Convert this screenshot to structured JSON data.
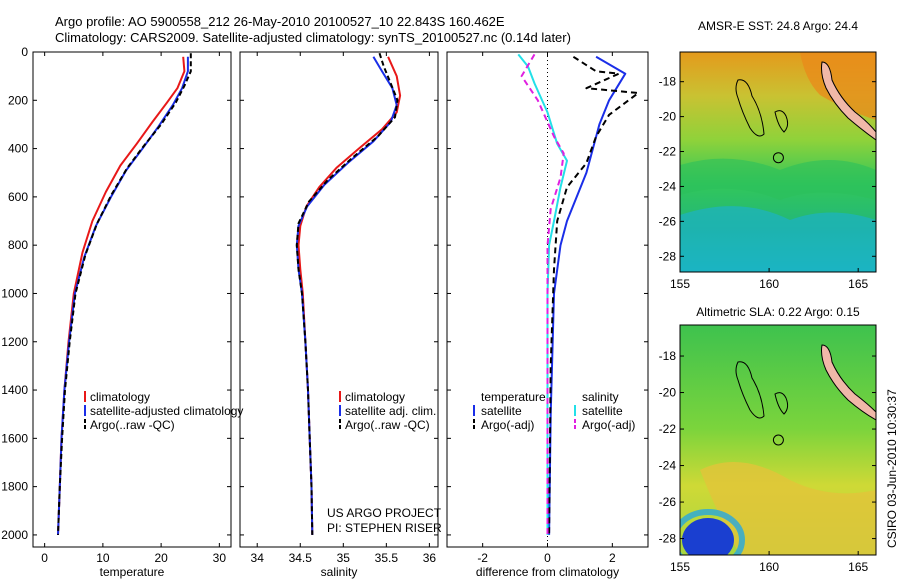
{
  "header": {
    "line1": "Argo profile: AO 5900558_212 26-May-2010 20100527_10 22.843S 160.462E",
    "line2": "Climatology: CARS2009. Satellite-adjusted climatology: synTS_20100527.nc (0.14d later)"
  },
  "side_caption": "CSIRO 03-Jun-2010 10:30:37",
  "project_note": {
    "line1": "US ARGO PROJECT",
    "line2": "PI: STEPHEN RISER"
  },
  "colors": {
    "climatology": "#e81818",
    "satellite": "#1a2ee8",
    "argo": "#000000",
    "salinity_satellite": "#22e0e8",
    "salinity_argo": "#e020e0"
  },
  "chart_data": [
    {
      "id": "temperature",
      "type": "line",
      "xlabel": "temperature",
      "ylabel": "",
      "xlim": [
        -2,
        32
      ],
      "ylim": [
        2050,
        0
      ],
      "xticks": [
        0,
        10,
        20,
        30
      ],
      "yticks": [
        0,
        200,
        400,
        600,
        800,
        1000,
        1200,
        1400,
        1600,
        1800,
        2000
      ],
      "legend": [
        "climatology",
        "satellite-adjusted climatology",
        "Argo(..raw -QC)"
      ],
      "series": [
        {
          "name": "climatology",
          "color": "climatology",
          "dash": "",
          "points": [
            [
              23.8,
              20
            ],
            [
              24.0,
              80
            ],
            [
              22.8,
              150
            ],
            [
              21.0,
              210
            ],
            [
              18.5,
              290
            ],
            [
              15.8,
              380
            ],
            [
              13.0,
              470
            ],
            [
              10.5,
              580
            ],
            [
              8.2,
              700
            ],
            [
              6.5,
              830
            ],
            [
              5.0,
              1000
            ],
            [
              4.1,
              1200
            ],
            [
              3.4,
              1400
            ],
            [
              2.9,
              1600
            ],
            [
              2.6,
              1800
            ],
            [
              2.3,
              2000
            ]
          ]
        },
        {
          "name": "satellite-adjusted climatology",
          "color": "satellite",
          "dash": "",
          "points": [
            [
              24.6,
              20
            ],
            [
              24.6,
              80
            ],
            [
              23.6,
              150
            ],
            [
              22.0,
              220
            ],
            [
              19.5,
              310
            ],
            [
              16.8,
              400
            ],
            [
              14.0,
              490
            ],
            [
              11.4,
              600
            ],
            [
              8.8,
              720
            ],
            [
              6.8,
              850
            ],
            [
              5.2,
              1000
            ],
            [
              4.2,
              1200
            ],
            [
              3.4,
              1400
            ],
            [
              2.9,
              1600
            ],
            [
              2.6,
              1800
            ],
            [
              2.3,
              2000
            ]
          ]
        },
        {
          "name": "Argo(..raw -QC)",
          "color": "argo",
          "dash": "5,3",
          "points": [
            [
              25.1,
              5
            ],
            [
              25.1,
              80
            ],
            [
              24.0,
              140
            ],
            [
              22.5,
              210
            ],
            [
              20.0,
              300
            ],
            [
              17.0,
              390
            ],
            [
              14.2,
              480
            ],
            [
              11.5,
              590
            ],
            [
              9.0,
              710
            ],
            [
              7.0,
              840
            ],
            [
              5.3,
              1000
            ],
            [
              4.3,
              1200
            ],
            [
              3.5,
              1400
            ],
            [
              3.0,
              1600
            ],
            [
              2.6,
              1800
            ],
            [
              2.3,
              2000
            ]
          ]
        }
      ]
    },
    {
      "id": "salinity",
      "type": "line",
      "xlabel": "salinity",
      "ylabel": "",
      "xlim": [
        33.8,
        36.1
      ],
      "ylim": [
        2050,
        0
      ],
      "xticks": [
        34,
        34.5,
        35,
        35.5,
        36
      ],
      "yticks": [
        0,
        200,
        400,
        600,
        800,
        1000,
        1200,
        1400,
        1600,
        1800,
        2000
      ],
      "legend": [
        "climatology",
        "satellite adj. clim.",
        "Argo(..raw -QC)"
      ],
      "series": [
        {
          "name": "climatology",
          "color": "climatology",
          "dash": "",
          "points": [
            [
              35.52,
              20
            ],
            [
              35.62,
              100
            ],
            [
              35.66,
              180
            ],
            [
              35.62,
              250
            ],
            [
              35.45,
              320
            ],
            [
              35.18,
              400
            ],
            [
              34.92,
              480
            ],
            [
              34.72,
              560
            ],
            [
              34.57,
              640
            ],
            [
              34.5,
              720
            ],
            [
              34.48,
              800
            ],
            [
              34.5,
              900
            ],
            [
              34.53,
              1000
            ],
            [
              34.56,
              1200
            ],
            [
              34.59,
              1400
            ],
            [
              34.61,
              1600
            ],
            [
              34.63,
              1800
            ],
            [
              34.64,
              2000
            ]
          ]
        },
        {
          "name": "satellite adj. clim.",
          "color": "satellite",
          "dash": "",
          "points": [
            [
              35.35,
              20
            ],
            [
              35.45,
              80
            ],
            [
              35.57,
              150
            ],
            [
              35.62,
              220
            ],
            [
              35.55,
              290
            ],
            [
              35.35,
              370
            ],
            [
              35.05,
              460
            ],
            [
              34.78,
              550
            ],
            [
              34.58,
              640
            ],
            [
              34.48,
              720
            ],
            [
              34.46,
              800
            ],
            [
              34.48,
              900
            ],
            [
              34.52,
              1000
            ],
            [
              34.56,
              1200
            ],
            [
              34.59,
              1400
            ],
            [
              34.61,
              1600
            ],
            [
              34.63,
              1800
            ],
            [
              34.64,
              2000
            ]
          ]
        },
        {
          "name": "Argo(..raw -QC)",
          "color": "argo",
          "dash": "5,3",
          "points": [
            [
              35.42,
              5
            ],
            [
              35.47,
              60
            ],
            [
              35.55,
              130
            ],
            [
              35.63,
              200
            ],
            [
              35.6,
              270
            ],
            [
              35.4,
              350
            ],
            [
              35.1,
              440
            ],
            [
              34.82,
              530
            ],
            [
              34.6,
              620
            ],
            [
              34.48,
              710
            ],
            [
              34.46,
              800
            ],
            [
              34.48,
              900
            ],
            [
              34.52,
              1000
            ],
            [
              34.56,
              1200
            ],
            [
              34.59,
              1400
            ],
            [
              34.61,
              1600
            ],
            [
              34.63,
              1800
            ],
            [
              34.64,
              2000
            ]
          ]
        }
      ]
    },
    {
      "id": "difference",
      "type": "line",
      "xlabel": "difference from climatology",
      "ylabel": "",
      "xlim": [
        -3.1,
        3.1
      ],
      "ylim": [
        2050,
        0
      ],
      "xticks": [
        -2,
        0,
        2
      ],
      "yticks": [
        0,
        200,
        400,
        600,
        800,
        1000,
        1200,
        1400,
        1600,
        1800,
        2000
      ],
      "zero_line": true,
      "legend_groups": [
        {
          "title": "temperature",
          "items": [
            "satellite",
            "Argo(-adj)"
          ]
        },
        {
          "title": "salinity",
          "items": [
            "satellite",
            "Argo(-adj)"
          ]
        }
      ],
      "series": [
        {
          "name": "temperature satellite",
          "color": "satellite",
          "dash": "",
          "points": [
            [
              1.5,
              20
            ],
            [
              2.4,
              90
            ],
            [
              1.9,
              200
            ],
            [
              1.6,
              300
            ],
            [
              1.4,
              400
            ],
            [
              1.2,
              500
            ],
            [
              0.9,
              600
            ],
            [
              0.6,
              700
            ],
            [
              0.4,
              800
            ],
            [
              0.2,
              1000
            ],
            [
              0.1,
              1500
            ],
            [
              0.05,
              2000
            ]
          ]
        },
        {
          "name": "temperature Argo(-adj)",
          "color": "argo",
          "dash": "6,4",
          "points": [
            [
              0.8,
              20
            ],
            [
              1.5,
              80
            ],
            [
              2.2,
              90
            ],
            [
              1.2,
              150
            ],
            [
              2.8,
              170
            ],
            [
              1.9,
              260
            ],
            [
              1.5,
              350
            ],
            [
              1.2,
              460
            ],
            [
              0.6,
              560
            ],
            [
              0.3,
              700
            ],
            [
              0.2,
              900
            ],
            [
              0.1,
              1300
            ],
            [
              0.05,
              2000
            ]
          ]
        },
        {
          "name": "salinity satellite",
          "color": "salinity_satellite",
          "dash": "",
          "points": [
            [
              -0.9,
              10
            ],
            [
              -0.6,
              60
            ],
            [
              -0.4,
              130
            ],
            [
              0.0,
              250
            ],
            [
              0.3,
              380
            ],
            [
              0.6,
              450
            ],
            [
              0.4,
              560
            ],
            [
              0.2,
              700
            ],
            [
              0.05,
              800
            ],
            [
              0.0,
              1000
            ],
            [
              0.0,
              2000
            ]
          ]
        },
        {
          "name": "salinity Argo(-adj)",
          "color": "salinity_argo",
          "dash": "6,4",
          "points": [
            [
              -0.4,
              10
            ],
            [
              -0.8,
              100
            ],
            [
              -0.3,
              200
            ],
            [
              0.2,
              350
            ],
            [
              0.5,
              420
            ],
            [
              0.4,
              520
            ],
            [
              0.1,
              650
            ],
            [
              0.0,
              800
            ],
            [
              0.0,
              2000
            ]
          ]
        }
      ]
    },
    {
      "id": "sst_map",
      "type": "heatmap",
      "title": "AMSR-E SST: 24.8 Argo: 24.4",
      "xlim": [
        155,
        166
      ],
      "ylim": [
        -28.9,
        -16.3
      ],
      "xticks": [
        155,
        160,
        165
      ],
      "yticks": [
        -18,
        -20,
        -22,
        -24,
        -26,
        -28
      ],
      "argo_position": [
        160.462,
        -22.843
      ]
    },
    {
      "id": "sla_map",
      "type": "heatmap",
      "title": "Altimetric SLA: 0.22 Argo: 0.15",
      "xlim": [
        155,
        166
      ],
      "ylim": [
        -28.9,
        -16.3
      ],
      "xticks": [
        155,
        160,
        165
      ],
      "yticks": [
        -18,
        -20,
        -22,
        -24,
        -26,
        -28
      ],
      "argo_position": [
        160.462,
        -22.843
      ]
    }
  ]
}
